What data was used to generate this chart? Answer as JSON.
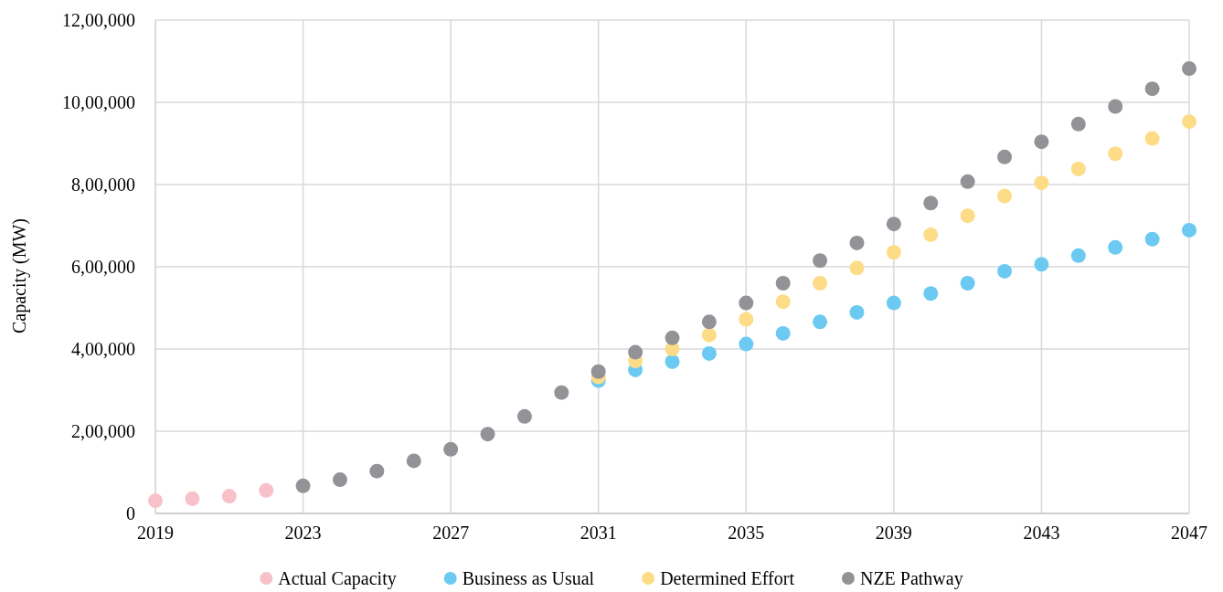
{
  "chart_data": {
    "type": "scatter",
    "ylabel": "Capacity (MW)",
    "x": [
      2019,
      2020,
      2021,
      2022,
      2023,
      2024,
      2025,
      2026,
      2027,
      2028,
      2029,
      2030,
      2031,
      2032,
      2033,
      2034,
      2035,
      2036,
      2037,
      2038,
      2039,
      2040,
      2041,
      2042,
      2043,
      2044,
      2045,
      2046,
      2047
    ],
    "xlim": [
      2019,
      2047
    ],
    "xticks": [
      2019,
      2023,
      2027,
      2031,
      2035,
      2039,
      2043,
      2047
    ],
    "ylim": [
      0,
      1200000
    ],
    "yticks": [
      0,
      {
        "value": 200000,
        "label": "2,00,000"
      },
      {
        "value": 400000,
        "label": "4,00,000"
      },
      {
        "value": 600000,
        "label": "6,00,000"
      },
      {
        "value": 800000,
        "label": "8,00,000"
      },
      {
        "value": 1000000,
        "label": "10,00,000"
      },
      {
        "value": 1200000,
        "label": "12,00,000"
      }
    ],
    "grid": true,
    "legend": "bottom",
    "marker": "circle",
    "series": [
      {
        "name": "Actual Capacity",
        "color": "#f8c1c9",
        "values": [
          31000,
          36000,
          42000,
          56000,
          null,
          null,
          null,
          null,
          null,
          null,
          null,
          null,
          null,
          null,
          null,
          null,
          null,
          null,
          null,
          null,
          null,
          null,
          null,
          null,
          null,
          null,
          null,
          null,
          null
        ]
      },
      {
        "name": "Business as Usual",
        "color": "#6ccaf2",
        "values": [
          null,
          null,
          null,
          null,
          null,
          null,
          null,
          null,
          null,
          null,
          null,
          null,
          323000,
          349000,
          369000,
          389000,
          412000,
          438000,
          466000,
          489000,
          512000,
          535000,
          560000,
          589000,
          606000,
          627000,
          647000,
          667000,
          689000
        ]
      },
      {
        "name": "Determined Effort",
        "color": "#fddc87",
        "values": [
          null,
          null,
          null,
          null,
          null,
          null,
          null,
          null,
          null,
          null,
          null,
          null,
          332000,
          371000,
          400000,
          434000,
          472000,
          515000,
          560000,
          597000,
          635000,
          678000,
          724000,
          772000,
          804000,
          838000,
          875000,
          912000,
          953000
        ]
      },
      {
        "name": "NZE Pathway",
        "color": "#939297",
        "values": [
          null,
          null,
          null,
          null,
          67000,
          82000,
          103000,
          128000,
          156000,
          193000,
          236000,
          294000,
          345000,
          392000,
          427000,
          466000,
          512000,
          560000,
          615000,
          658000,
          704000,
          755000,
          807000,
          867000,
          904000,
          947000,
          990000,
          1033000,
          1082000
        ]
      }
    ]
  }
}
